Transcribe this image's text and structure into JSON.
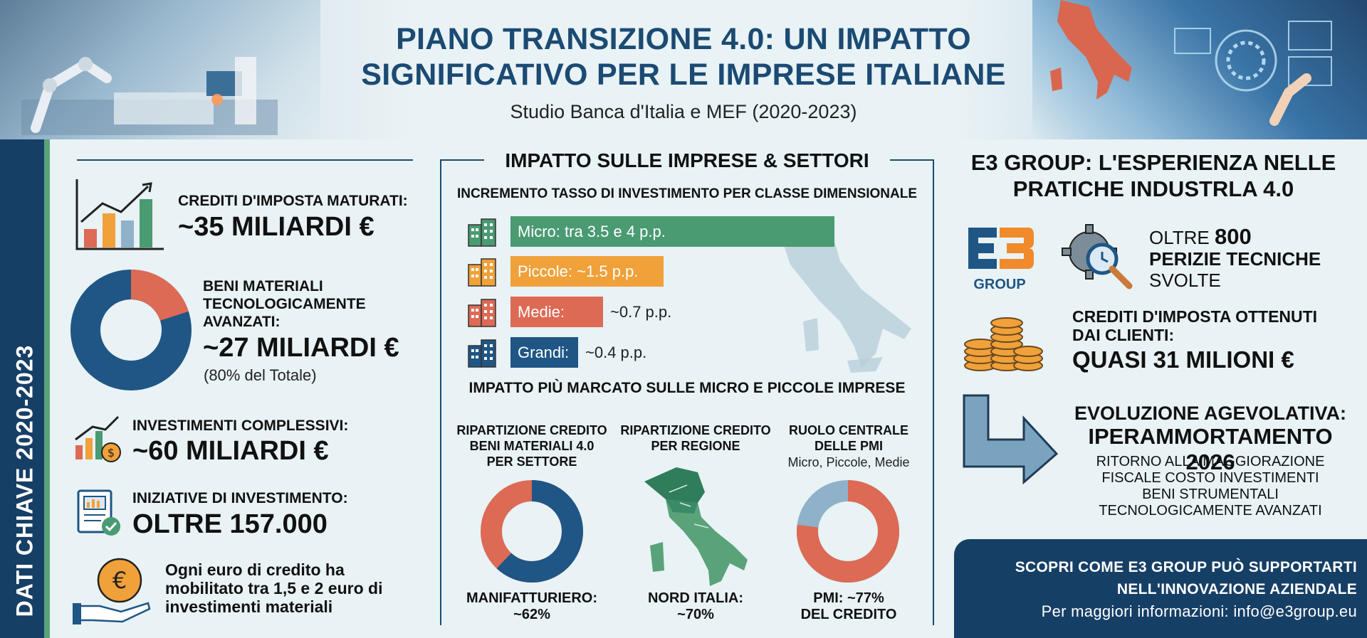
{
  "header": {
    "title_line1": "PIANO TRANSIZIONE 4.0: UN IMPATTO",
    "title_line2": "SIGNIFICATIVO PER LE IMPRESE ITALIANE",
    "subtitle": "Studio Banca d'Italia e MEF (2020-2023)"
  },
  "sidebar": {
    "label": "DATI CHIAVE 2020-2023"
  },
  "left": {
    "crediti_label": "CREDITI D'IMPOSTA MATURATI:",
    "crediti_value": "~35 MILIARDI €",
    "beni_label_1": "BENI MATERIALI",
    "beni_label_2": "TECNOLOGICAMENTE",
    "beni_label_3": "AVANZATI:",
    "beni_value": "~27 MILIARDI €",
    "beni_note": "(80% del Totale)",
    "beni_share": 0.8,
    "invest_label": "INVESTIMENTI COMPLESSIVI:",
    "invest_value": "~60 MILIARDI €",
    "iniz_label": "INIZIATIVE DI INVESTIMENTO:",
    "iniz_value": "OLTRE 157.000",
    "euro_text_1": "Ogni euro di credito ha",
    "euro_text_2": "mobilitato tra 1,5 e 2 euro di",
    "euro_text_3": "investimenti materiali"
  },
  "middle": {
    "title": "IMPATTO SULLE IMPRESE & SETTORI",
    "bars_title": "INCREMENTO TASSO DI INVESTIMENTO PER CLASSE DIMENSIONALE",
    "bars": [
      {
        "label": "Micro: tra 3.5 e 4 p.p.",
        "value": "",
        "color": "#4a9a72"
      },
      {
        "label": "Piccole: ~1.5 p.p.",
        "value": "",
        "color": "#f0a13a"
      },
      {
        "label": "Medie:",
        "value": "~0.7 p.p.",
        "color": "#dc6a55"
      },
      {
        "label": "Grandi:",
        "value": "~0.4 p.p.",
        "color": "#1f5685"
      }
    ],
    "impact_title": "IMPATTO PIÙ MARCATO SULLE MICRO E PICCOLE IMPRESE",
    "col1_h1": "RIPARTIZIONE CREDITO",
    "col1_h2": "BENI MATERIALI 4.0",
    "col1_h3": "PER SETTORE",
    "col1_f1": "MANIFATTURIERO:",
    "col1_f2": "~62%",
    "col1_share": 0.62,
    "col2_h1": "RIPARTIZIONE CREDITO",
    "col2_h2": "PER REGIONE",
    "col2_f1": "NORD ITALIA:",
    "col2_f2": "~70%",
    "col3_h1": "RUOLO CENTRALE",
    "col3_h2": "DELLE PMI",
    "col3_s": "Micro, Piccole, Medie",
    "col3_f1": "PMI: ~77%",
    "col3_f2": "DEL CREDITO",
    "col3_share": 0.77
  },
  "right": {
    "title_1": "E3 GROUP: L'ESPERIENZA NELLE",
    "title_2": "PRATICHE INDUSTRLA 4.0",
    "logo_text": "E3",
    "logo_sub": "GROUP",
    "perizie_1": "OLTRE",
    "perizie_num": "800",
    "perizie_2": "PERIZIE TECNICHE",
    "perizie_3": "SVOLTE",
    "crediti_1": "CREDITI D'IMPOSTA OTTENUTI",
    "crediti_2": "DAI CLIENTI:",
    "crediti_value": "QUASI 31 MILIONI €",
    "evo_1": "EVOLUZIONE AGEVOLATIVA:",
    "evo_2": "IPERAMMORTAMENTO 2026",
    "evo_d1": "RITORNO ALLA MAGGIORAZIONE",
    "evo_d2": "FISCALE COSTO INVESTIMENTI",
    "evo_d3": "BENI STRUMENTALI",
    "evo_d4": "TECNOLOGICAMENTE AVANZATI",
    "cta_1": "SCOPRI COME E3 GROUP PUÒ SUPPORTARTI",
    "cta_2": "NELL'INNOVAZIONE AZIENDALE",
    "cta_3": "Per maggiori informazioni: info@e3group.eu"
  },
  "colors": {
    "navy": "#163f66",
    "green": "#4a9a72",
    "orange": "#f0a13a",
    "red": "#dc6a55",
    "blue": "#1f5685",
    "light_blue": "#8fb1c9"
  }
}
